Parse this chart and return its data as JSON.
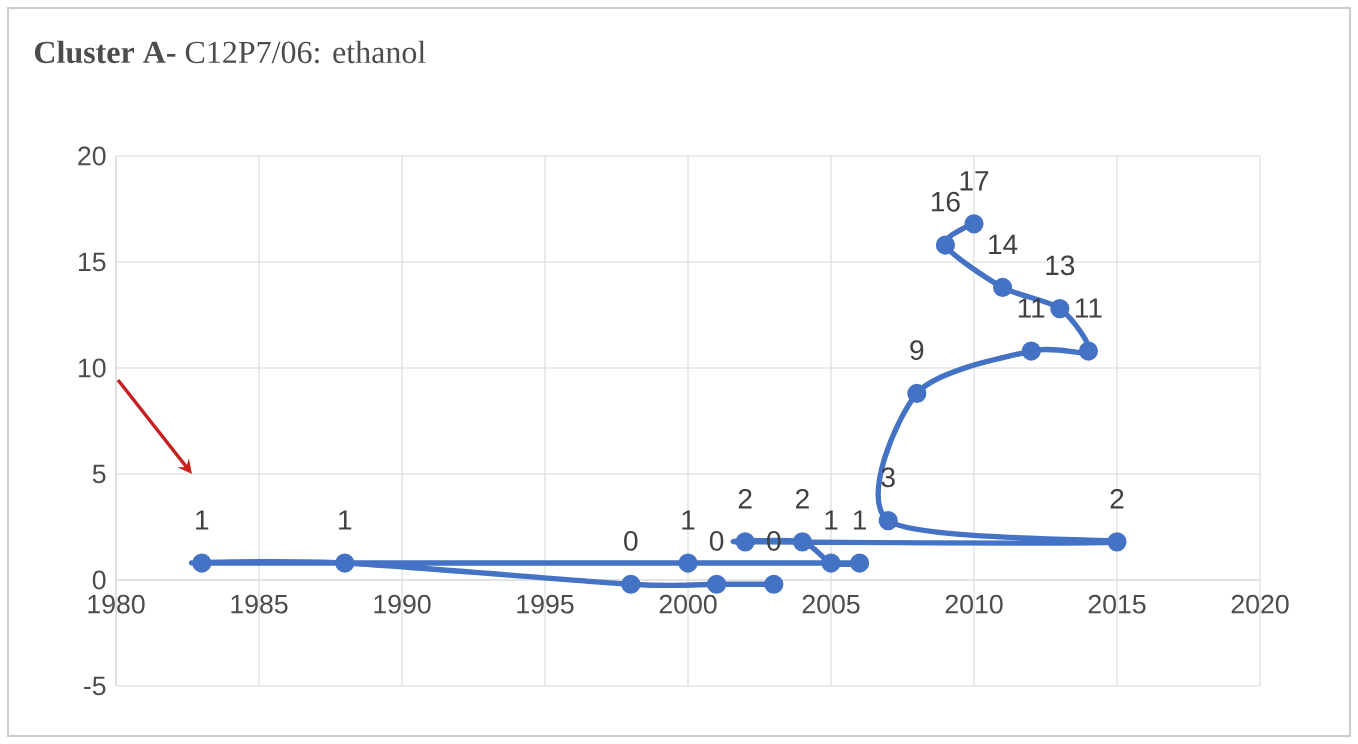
{
  "chart_data": {
    "type": "line",
    "title": "**Cluster A-** C12P7/06:  ethanol",
    "x": [
      2003,
      2001,
      1998,
      1988,
      1983,
      2000,
      2006,
      2005,
      2004,
      2002,
      2015,
      2007,
      2008,
      2012,
      2014,
      2013,
      2011,
      2009,
      2010
    ],
    "series": [
      {
        "color": "#4472c4",
        "values": [
          -0.2,
          -0.2,
          -0.2,
          0.8,
          0.8,
          0.8,
          0.8,
          0.8,
          1.8,
          1.8,
          1.8,
          2.8,
          8.8,
          10.8,
          10.8,
          12.8,
          13.8,
          15.8,
          16.8
        ],
        "value_labels": [
          "0",
          "0",
          "0",
          "1",
          "1",
          "1",
          "1",
          "1",
          "2",
          "2",
          "2",
          "3",
          "9",
          "11",
          "11",
          "13",
          "14",
          "16",
          "17"
        ]
      }
    ],
    "xlim": [
      1980,
      2020
    ],
    "xticks": [
      1980,
      1985,
      1990,
      1995,
      2000,
      2005,
      2010,
      2015,
      2020
    ],
    "ylim": [
      -5,
      20
    ],
    "yticks": [
      -5,
      0,
      5,
      10,
      15,
      20
    ],
    "grid": true,
    "marker": "circle",
    "line_style": "solid"
  }
}
